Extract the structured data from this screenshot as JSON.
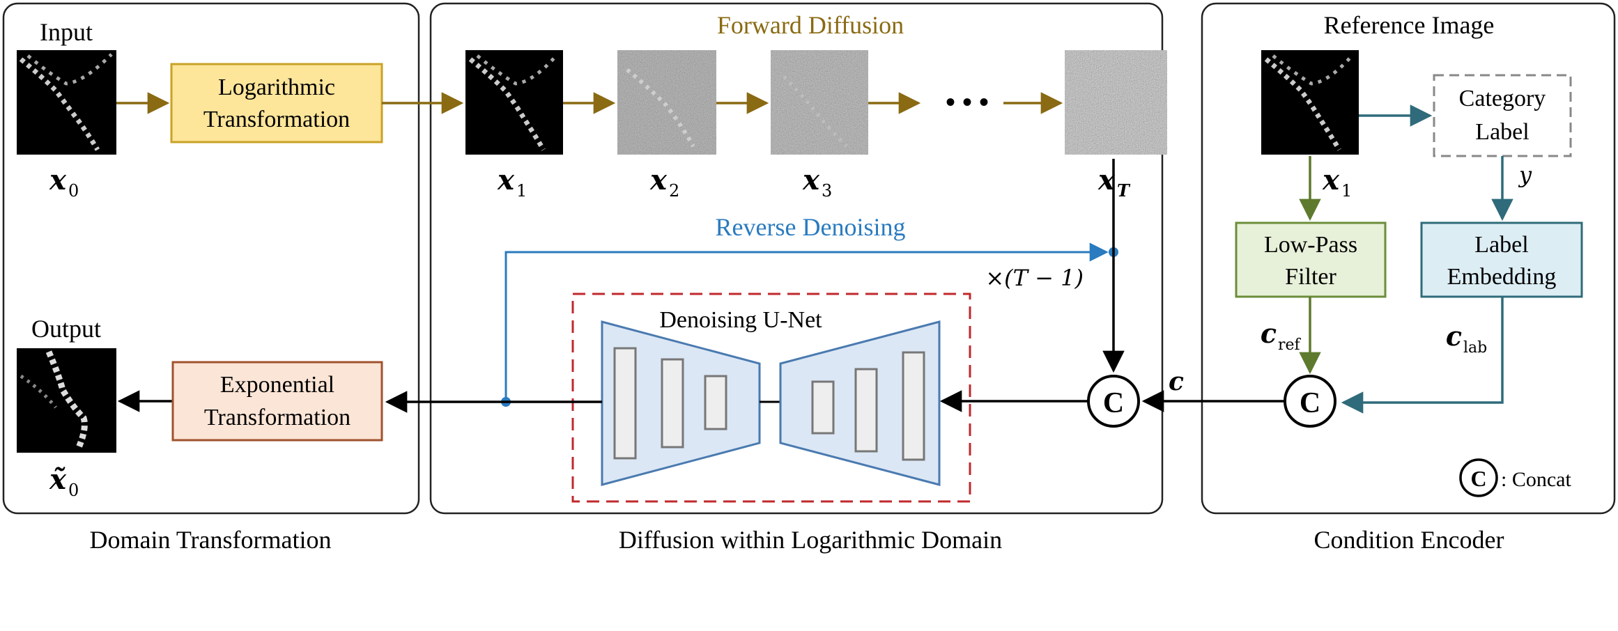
{
  "colors": {
    "forward": "#8a6a12",
    "reverse": "#2a7bbf",
    "teal": "#2f6b7a",
    "green": "#5e7a2e",
    "unet_border": "#c0282d",
    "log_fill": "#fde59a",
    "log_stroke": "#c9a227",
    "exp_fill": "#fbe5d6",
    "exp_stroke": "#a0522d",
    "lpf_fill": "#e7f0d8",
    "lpf_stroke": "#6b8e3a",
    "emb_fill": "#dcedf4",
    "emb_stroke": "#2f6b7a",
    "unet_fill": "#dbe7f5",
    "unet_stroke": "#4a7ab0"
  },
  "panels": {
    "domain": {
      "caption": "Domain Transformation",
      "input_label": "Input",
      "output_label": "Output",
      "x0": "x",
      "x0_sub": "0",
      "x0tilde": "x̃",
      "x0tilde_sub": "0",
      "log_box": [
        "Logarithmic",
        "Transformation"
      ],
      "exp_box": [
        "Exponential",
        "Transformation"
      ]
    },
    "diffusion": {
      "caption": "Diffusion within Logarithmic Domain",
      "forward_title": "Forward Diffusion",
      "reverse_title": "Reverse Denoising",
      "ellipsis": "• • •",
      "x1": "x",
      "x1_sub": "1",
      "x2": "x",
      "x2_sub": "2",
      "x3": "x",
      "x3_sub": "3",
      "xT": "x",
      "xT_sub": "T",
      "repeat": "×(T − 1)",
      "unet_title": "Denoising U-Net",
      "c_label": "c"
    },
    "condition": {
      "caption": "Condition Encoder",
      "ref_title": "Reference Image",
      "x1": "x",
      "x1_sub": "1",
      "category_box": [
        "Category",
        "Label"
      ],
      "y_label": "y",
      "lpf_box": [
        "Low-Pass",
        "Filter"
      ],
      "emb_box": [
        "Label",
        "Embedding"
      ],
      "cref": "c",
      "cref_sub": "ref",
      "clab": "c",
      "clab_sub": "lab",
      "concat_symbol": "C",
      "concat_legend": ": Concat"
    }
  }
}
